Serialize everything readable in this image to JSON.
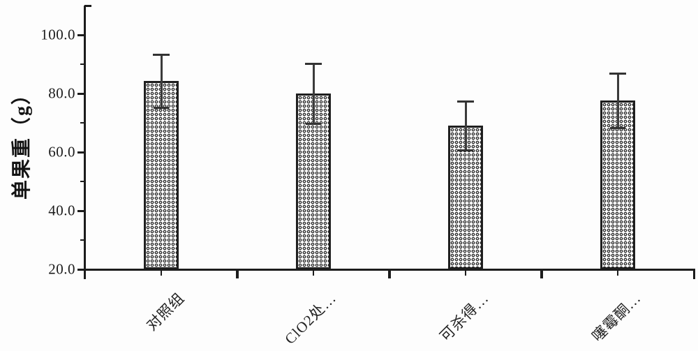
{
  "chart_data": {
    "type": "bar",
    "title": "",
    "xlabel": "",
    "ylabel": "单果重（g）",
    "categories": [
      "对照组",
      "ClO2处…",
      "可杀得…",
      "噻霉酮…"
    ],
    "values": [
      84.3,
      80.0,
      69.0,
      77.6
    ],
    "error_bars": [
      9.0,
      10.2,
      8.3,
      9.2
    ],
    "ylim": [
      20,
      110
    ],
    "ytick_major_values": [
      20,
      40,
      60,
      80,
      100
    ],
    "ytick_major_labels": [
      "20.0",
      "40.0",
      "60.0",
      "80.0",
      "100.0"
    ],
    "ytick_minor_values": [
      30,
      50,
      70,
      90,
      110
    ],
    "grid": false,
    "legend": "none",
    "bar_fill_style": "halftone-dot-pattern",
    "x_label_rotation_deg": 45,
    "colors": {
      "background": "#fdfdfd",
      "axis": "#1c1c1c",
      "bar_border": "#1f1f1f",
      "bar_dots": "#2e2e2e",
      "bar_background": "#ffffff",
      "error_bar": "#3b3b3b",
      "text": "#1c1c1c"
    }
  }
}
